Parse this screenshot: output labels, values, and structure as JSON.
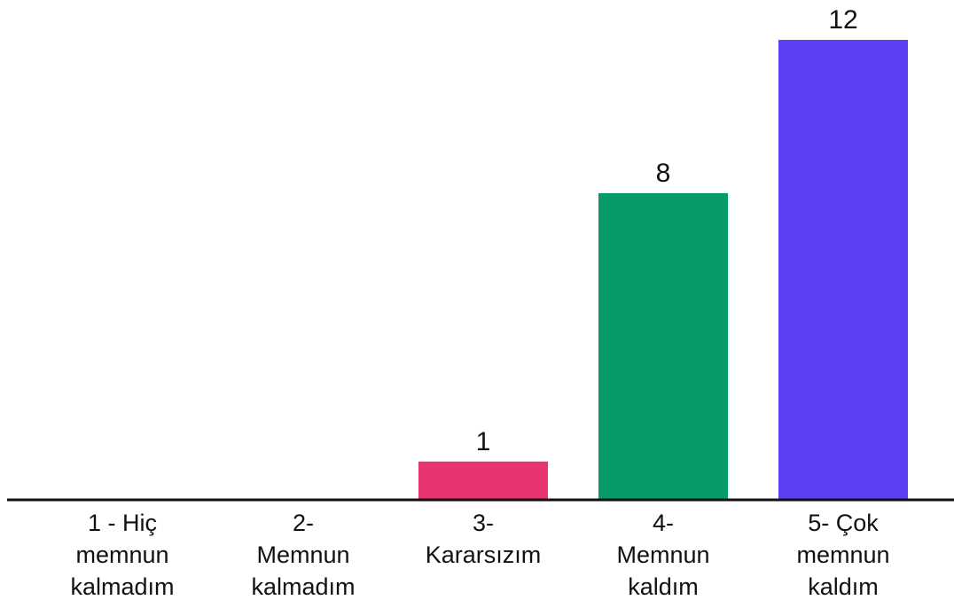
{
  "chart_data": {
    "type": "bar",
    "title": "",
    "xlabel": "",
    "ylabel": "",
    "categories": [
      [
        "1 - Hiç",
        "memnun",
        "kalmadım"
      ],
      [
        "2-",
        "Memnun",
        "kalmadım"
      ],
      [
        "3-",
        "Kararsızım"
      ],
      [
        "4-",
        "Memnun",
        "kaldım"
      ],
      [
        "5- Çok",
        "memnun",
        "kaldım"
      ]
    ],
    "values": [
      0,
      0,
      1,
      8,
      12
    ],
    "value_labels": [
      "",
      "",
      "1",
      "8",
      "12"
    ],
    "colors": [
      "#e8336e",
      "#e8336e",
      "#e8336e",
      "#059b6a",
      "#5b3ff5"
    ],
    "ylim": [
      0,
      12
    ],
    "grid": false,
    "legend": "none",
    "axis_color": "#111111"
  }
}
